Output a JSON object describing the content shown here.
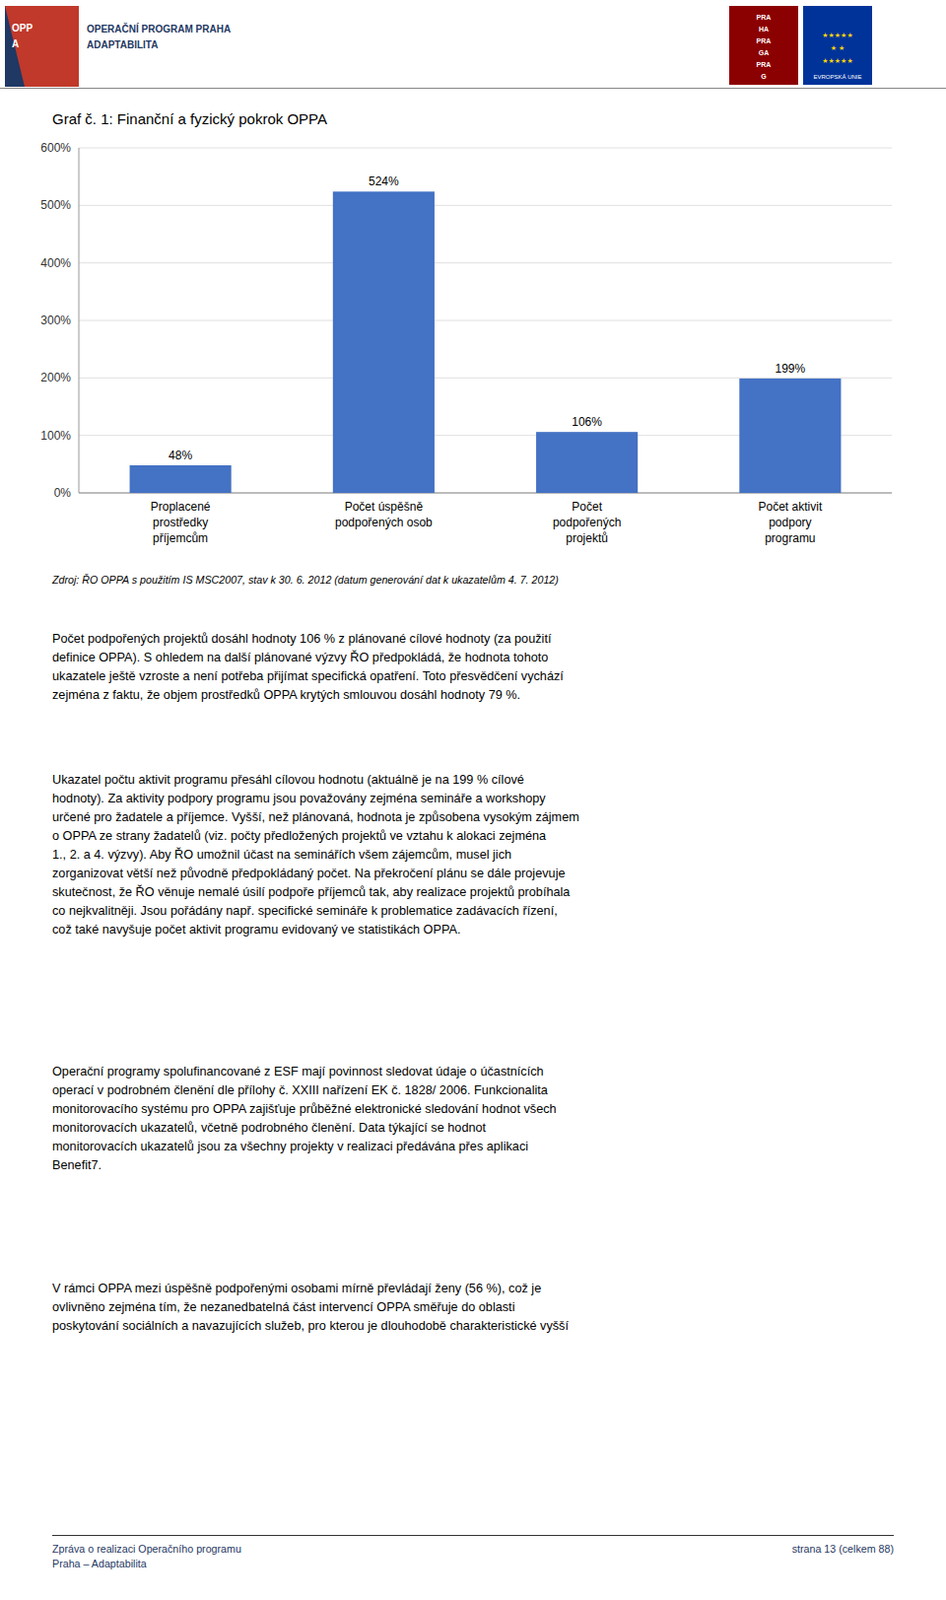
{
  "chart_data": {
    "type": "bar",
    "title": "Graf č. 1: Finanční a fyzický pokrok OPPA",
    "categories": [
      "Proplacené\nprostředky\npříjemcům",
      "Počet úspěšně\npodpořených osob",
      "Počet\npodpořených\nprojektů",
      "Počet aktivit\npodpory\nprogramu"
    ],
    "values": [
      48,
      524,
      106,
      199
    ],
    "value_labels": [
      "48%",
      "524%",
      "106%",
      "199%"
    ],
    "color": "#4472C4",
    "ylim": [
      0,
      600
    ],
    "yticks": [
      {
        "value": 0,
        "label": "0%"
      },
      {
        "value": 100,
        "label": "100%"
      },
      {
        "value": 200,
        "label": "200%"
      },
      {
        "value": 300,
        "label": "300%"
      },
      {
        "value": 400,
        "label": "400%"
      },
      {
        "value": 500,
        "label": "500%"
      },
      {
        "value": 600,
        "label": "600%"
      }
    ],
    "grid": true,
    "data_labels": true
  },
  "page": {
    "header_left_line1": "OPERAČNÍ PROGRAM PRAHA",
    "header_left_line2": "ADAPTABILITA",
    "logo_oppa_text": [
      "OPP",
      "A"
    ],
    "logo_praha_text": [
      "PRA",
      "HA",
      "PRA",
      "GA",
      "PRA",
      "G"
    ],
    "logo_eu_text": [
      "★★★★★",
      "★  ★",
      "★★★★★",
      "EVROPSKÁ UNIE"
    ],
    "source_text": "Zdroj: ŘO OPPA s použitím IS MSC2007, stav k 30. 6. 2012 (datum generování dat k ukazatelům 4. 7. 2012)",
    "body_texts": [
      "Počet podpořených projektů dosáhl hodnoty 106 % z plánované cílové hodnoty (za použití\ndefinice OPPA). S ohledem na další plánované výzvy ŘO předpokládá, že hodnota tohoto\nukazatele ještě vzroste a není potřeba přijímat specifická opatření. Toto přesvědčení vychází\nzejména z faktu, že objem prostředků OPPA krytých smlouvou dosáhl hodnoty 79 %.",
      "Ukazatel počtu aktivit programu přesáhl cílovou hodnotu (aktuálně je na 199 % cílové\nhodnoty). Za aktivity podpory programu jsou považovány zejména semináře a workshopy\nurčené pro žadatele a příjemce. Vyšší, než plánovaná, hodnota je způsobena vysokým zájmem\no OPPA ze strany žadatelů (viz. počty předložených projektů ve vztahu k alokaci zejména\n1., 2. a 4. výzvy). Aby ŘO umožnil účast na seminářích všem zájemcům, musel jich\nzorganizovat větší než původně předpokládaný počet. Na překročení plánu se dále projevuje\nskutečnost, že ŘO věnuje nemalé úsilí podpoře příjemců tak, aby realizace projektů probíhala\nco nejkvalitněji. Jsou pořádány např. specifické semináře k problematice zadávacích řízení,\ncož také navyšuje počet aktivit programu evidovaný ve statistikách OPPA.",
      "Operační programy spolufinancované z ESF mají povinnost sledovat údaje o účastnících\noperací v podrobném členění dle přílohy č. XXIII nařízení EK č. 1828/ 2006. Funkcionalita\nmonitorovacího systému pro OPPA zajišťuje průběžné elektronické sledování hodnot všech\nmonitorovacích ukazatelů, včetně podrobného členění. Data týkající se hodnot\nmonitorovacích ukazatelů jsou za všechny projekty v realizaci předávána přes aplikaci\nBenefit7.",
      "V rámci OPPA mezi úspěšně podpořenými osobami mírně převládají ženy (56 %), což je\novlivněno zejména tím, že nezanedbatelná část intervencí OPPA směřuje do oblasti\nposkytování sociálních a navazujících služeb, pro kterou je dlouhodobě charakteristické vyšší"
    ],
    "footer_left": "Zpráva o realizaci Operačního programu\nPraha – Adaptabilita",
    "footer_right": "strana 13 (celkem 88)"
  }
}
